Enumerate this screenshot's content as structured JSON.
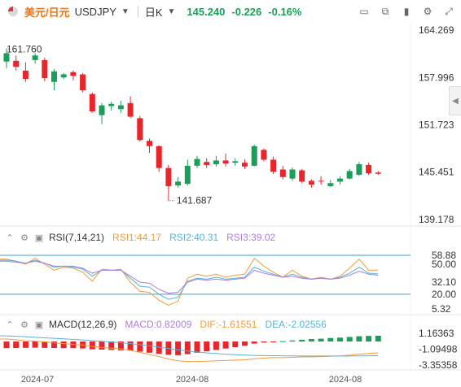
{
  "header": {
    "symbol_cn": "美元/日元",
    "symbol": "USDJPY",
    "period": "日K",
    "price": "145.240",
    "change": "-0.226",
    "change_pct": "-0.16%"
  },
  "colors": {
    "up": "#1a9e5a",
    "down": "#e8252a",
    "accent": "#e8751a",
    "rsi1": "#f39b38",
    "rsi2": "#53b5d8",
    "rsi3": "#b07de0",
    "diff": "#f39b38",
    "dea": "#53b5d8"
  },
  "price_axis": [
    "164.269",
    "157.996",
    "151.723",
    "145.451",
    "139.178"
  ],
  "annotations": {
    "high": "161.760",
    "low": "141.687"
  },
  "rsi": {
    "label": "RSI(7,14,21)",
    "rsi1_label": "RSI1:44.17",
    "rsi2_label": "RSI2:40.31",
    "rsi3_label": "RSI3:39.02",
    "axis": [
      "58.88",
      "50.00",
      "32.10",
      "20.00",
      "5.32"
    ]
  },
  "macd": {
    "label": "MACD(12,26,9)",
    "macd_label": "MACD:0.82009",
    "dif_label": "DIF:-1.61551",
    "dea_label": "DEA:-2.02556",
    "axis": [
      "1.16363",
      "-1.09498",
      "-3.35358"
    ]
  },
  "x_labels": [
    "2024-07",
    "2024-08",
    "2024-08"
  ],
  "chart_data": {
    "type": "candlestick",
    "ylim": [
      139.178,
      164.269
    ],
    "candles": [
      {
        "o": 160.1,
        "c": 161.2,
        "h": 161.76,
        "l": 159.2
      },
      {
        "o": 160.2,
        "c": 159.4,
        "h": 160.9,
        "l": 158.9
      },
      {
        "o": 158.9,
        "c": 157.8,
        "h": 160.0,
        "l": 157.4
      },
      {
        "o": 160.3,
        "c": 160.9,
        "h": 161.2,
        "l": 159.8
      },
      {
        "o": 160.3,
        "c": 157.9,
        "h": 160.6,
        "l": 157.5
      },
      {
        "o": 157.4,
        "c": 158.8,
        "h": 159.1,
        "l": 156.3
      },
      {
        "o": 158.0,
        "c": 158.4,
        "h": 158.6,
        "l": 157.8
      },
      {
        "o": 158.7,
        "c": 158.2,
        "h": 158.9,
        "l": 157.6
      },
      {
        "o": 158.4,
        "c": 156.3,
        "h": 158.6,
        "l": 156.0
      },
      {
        "o": 155.8,
        "c": 153.5,
        "h": 156.0,
        "l": 153.3
      },
      {
        "o": 153.0,
        "c": 154.3,
        "h": 154.6,
        "l": 151.8
      },
      {
        "o": 154.2,
        "c": 154.5,
        "h": 154.8,
        "l": 153.6
      },
      {
        "o": 153.8,
        "c": 154.3,
        "h": 154.9,
        "l": 153.3
      },
      {
        "o": 154.6,
        "c": 152.8,
        "h": 155.5,
        "l": 152.6
      },
      {
        "o": 152.6,
        "c": 149.7,
        "h": 152.9,
        "l": 149.5
      },
      {
        "o": 149.6,
        "c": 148.9,
        "h": 149.9,
        "l": 148.0
      },
      {
        "o": 148.9,
        "c": 146.0,
        "h": 149.0,
        "l": 145.5
      },
      {
        "o": 146.0,
        "c": 143.6,
        "h": 146.4,
        "l": 141.687
      },
      {
        "o": 143.7,
        "c": 144.2,
        "h": 144.8,
        "l": 143.4
      },
      {
        "o": 143.9,
        "c": 146.3,
        "h": 147.1,
        "l": 143.7
      },
      {
        "o": 146.3,
        "c": 147.2,
        "h": 147.6,
        "l": 146.0
      },
      {
        "o": 146.8,
        "c": 146.4,
        "h": 147.3,
        "l": 146.0
      },
      {
        "o": 146.5,
        "c": 147.0,
        "h": 147.6,
        "l": 146.2
      },
      {
        "o": 147.0,
        "c": 146.6,
        "h": 147.9,
        "l": 146.2
      },
      {
        "o": 146.7,
        "c": 146.9,
        "h": 147.3,
        "l": 146.3
      },
      {
        "o": 146.7,
        "c": 146.2,
        "h": 147.1,
        "l": 145.9
      },
      {
        "o": 146.3,
        "c": 148.9,
        "h": 149.1,
        "l": 146.2
      },
      {
        "o": 148.4,
        "c": 147.1,
        "h": 148.6,
        "l": 146.9
      },
      {
        "o": 147.1,
        "c": 145.5,
        "h": 147.5,
        "l": 145.2
      },
      {
        "o": 145.8,
        "c": 144.8,
        "h": 146.3,
        "l": 144.5
      },
      {
        "o": 144.6,
        "c": 145.8,
        "h": 146.1,
        "l": 144.3
      },
      {
        "o": 145.7,
        "c": 144.2,
        "h": 145.9,
        "l": 144.0
      },
      {
        "o": 144.3,
        "c": 143.8,
        "h": 144.5,
        "l": 143.4
      },
      {
        "o": 144.3,
        "c": 144.2,
        "h": 144.9,
        "l": 143.8
      },
      {
        "o": 143.6,
        "c": 144.0,
        "h": 144.4,
        "l": 143.5
      },
      {
        "o": 144.2,
        "c": 144.6,
        "h": 144.9,
        "l": 143.8
      },
      {
        "o": 144.6,
        "c": 145.6,
        "h": 145.9,
        "l": 144.5
      },
      {
        "o": 145.1,
        "c": 146.5,
        "h": 146.8,
        "l": 145.0
      },
      {
        "o": 146.4,
        "c": 145.3,
        "h": 146.7,
        "l": 145.1
      },
      {
        "o": 145.4,
        "c": 145.24,
        "h": 145.6,
        "l": 145.1
      }
    ],
    "rsi": {
      "ylim": [
        5.32,
        58.88
      ],
      "rsi1": [
        55,
        53,
        50,
        56,
        50,
        44,
        47,
        46,
        42,
        33,
        45,
        44,
        45,
        32,
        23,
        22,
        14,
        9,
        13,
        36,
        40,
        38,
        40,
        37,
        39,
        40,
        56,
        48,
        42,
        37,
        44,
        38,
        35,
        37,
        35,
        38,
        46,
        55,
        44,
        44.17
      ],
      "rsi2": [
        54,
        53,
        51,
        54,
        51,
        47,
        48,
        47,
        45,
        38,
        44,
        44,
        44,
        36,
        28,
        27,
        20,
        15,
        17,
        33,
        36,
        35,
        37,
        35,
        36,
        37,
        47,
        43,
        40,
        37,
        40,
        37,
        35,
        36,
        35,
        37,
        41,
        47,
        41,
        40.31
      ],
      "rsi3": [
        53,
        52,
        51,
        53,
        51,
        48,
        48,
        48,
        46,
        41,
        44,
        44,
        44,
        38,
        32,
        31,
        25,
        21,
        22,
        32,
        35,
        34,
        35,
        34,
        35,
        36,
        44,
        41,
        39,
        37,
        38,
        36,
        35,
        36,
        35,
        36,
        39,
        43,
        40,
        39.02
      ]
    },
    "macd": {
      "ylim": [
        -3.35358,
        1.16363
      ],
      "hist": [
        -0.95,
        -0.93,
        -0.9,
        -0.88,
        -0.9,
        -0.92,
        -0.95,
        -0.95,
        -0.98,
        -1.1,
        -1.15,
        -1.2,
        -1.25,
        -1.3,
        -1.45,
        -1.6,
        -1.75,
        -1.9,
        -1.95,
        -1.8,
        -1.6,
        -1.4,
        -1.2,
        -1.0,
        -0.8,
        -0.6,
        -0.3,
        -0.15,
        -0.05,
        0.05,
        0.15,
        0.25,
        0.35,
        0.4,
        0.5,
        0.55,
        0.65,
        0.75,
        0.8,
        0.82
      ],
      "dif": [
        0.35,
        0.25,
        0.1,
        0.05,
        -0.05,
        -0.2,
        -0.3,
        -0.4,
        -0.5,
        -0.7,
        -0.85,
        -0.95,
        -1.05,
        -1.25,
        -1.55,
        -1.85,
        -2.15,
        -2.5,
        -2.75,
        -2.85,
        -2.85,
        -2.8,
        -2.75,
        -2.7,
        -2.65,
        -2.6,
        -2.45,
        -2.35,
        -2.3,
        -2.3,
        -2.25,
        -2.2,
        -2.2,
        -2.15,
        -2.1,
        -2.05,
        -1.95,
        -1.8,
        -1.7,
        -1.6155
      ],
      "dea": [
        0.8,
        0.75,
        0.68,
        0.6,
        0.53,
        0.45,
        0.38,
        0.3,
        0.22,
        0.12,
        0.02,
        -0.08,
        -0.18,
        -0.3,
        -0.45,
        -0.62,
        -0.8,
        -1.0,
        -1.18,
        -1.35,
        -1.5,
        -1.62,
        -1.72,
        -1.8,
        -1.88,
        -1.93,
        -1.98,
        -2.0,
        -2.02,
        -2.04,
        -2.05,
        -2.06,
        -2.07,
        -2.07,
        -2.07,
        -2.06,
        -2.06,
        -2.05,
        -2.04,
        -2.0256
      ]
    }
  }
}
